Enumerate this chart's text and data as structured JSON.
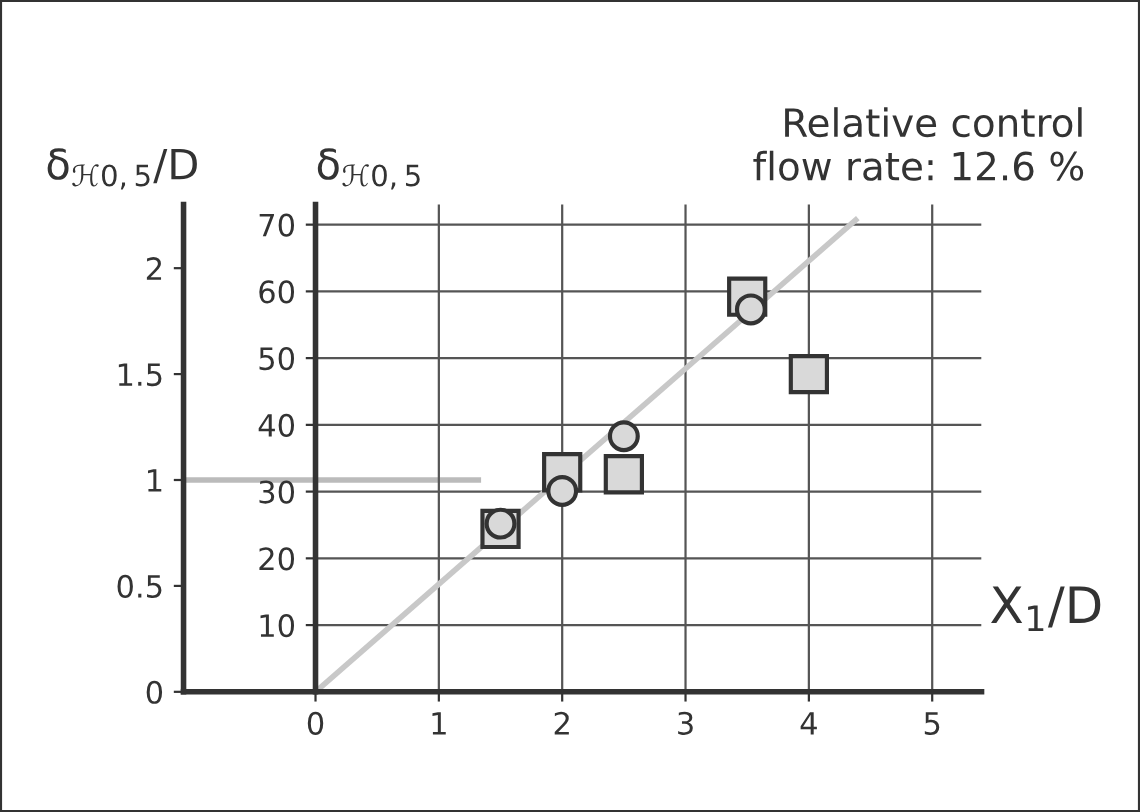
{
  "chart_data": {
    "type": "scatter",
    "ylabel": "δ$_{ℋ0,5}$",
    "y2label": "δ$_{ℋ0,5}$/D",
    "xlabel": "X$_{1}$/D",
    "xlim": [
      -1.07,
      5.4
    ],
    "ylim": [
      0,
      73
    ],
    "y2lim": [
      0,
      2.3
    ],
    "xticks": [
      0,
      1,
      2,
      3,
      4,
      5
    ],
    "yticks": [
      10,
      20,
      30,
      40,
      50,
      60,
      70
    ],
    "y2ticks": [
      0,
      0.5,
      1,
      1.5,
      2
    ],
    "grid": true,
    "annotations": [
      "Relative control\nflow rate: 12.6 %"
    ],
    "series": [
      {
        "type": "line",
        "color": "#c8c8c8",
        "x": [
          0,
          4.38
        ],
        "values": [
          0,
          70.7
        ]
      },
      {
        "type": "line",
        "axis": "y2",
        "color": "#bbbbbb",
        "x": [
          -1.07,
          1.32
        ],
        "values": [
          1,
          1
        ]
      },
      {
        "color": "#d9d9d9",
        "marker": "square",
        "x": [
          1.5,
          2,
          2.5,
          3.5,
          4
        ],
        "values": [
          24.4,
          32.9,
          32.6,
          59.2,
          47.6
        ]
      },
      {
        "color": "#d9d9d9",
        "marker": "circle",
        "x": [
          1.5,
          2,
          2.5,
          3.53
        ],
        "values": [
          25.2,
          30.1,
          38.3,
          57.3
        ]
      }
    ]
  }
}
